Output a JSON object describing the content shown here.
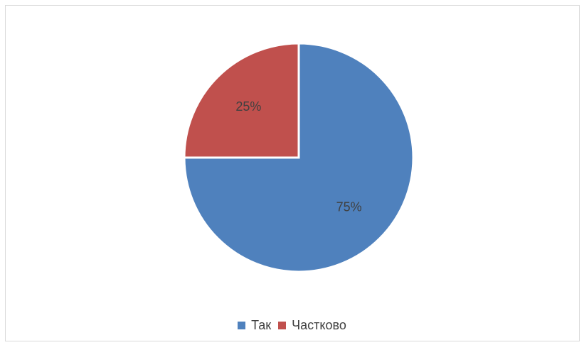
{
  "chart_data": {
    "type": "pie",
    "categories": [
      "Так",
      "Частково"
    ],
    "values": [
      75,
      25
    ],
    "labels": [
      "75%",
      "25%"
    ],
    "colors": [
      "#4f81bd",
      "#c0504d"
    ],
    "legend_position": "bottom"
  }
}
